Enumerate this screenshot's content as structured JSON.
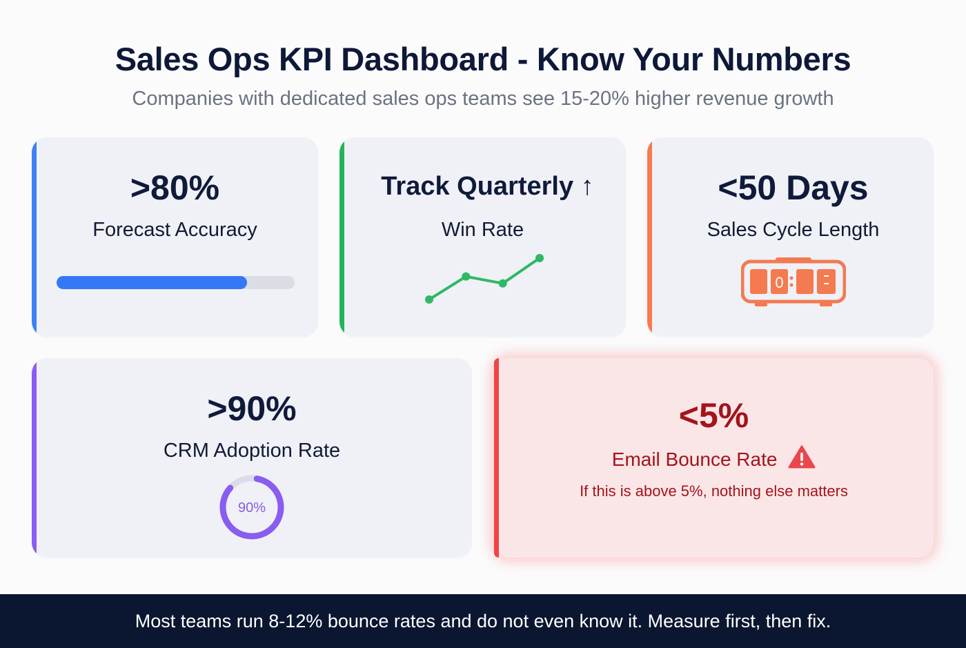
{
  "header": {
    "title": "Sales Ops KPI Dashboard - Know Your Numbers",
    "subtitle": "Companies with dedicated sales ops teams see 15-20% higher revenue growth"
  },
  "cards": [
    {
      "id": "forecast-accuracy",
      "value": ">80%",
      "label": "Forecast Accuracy",
      "accent_color": "#3b82f6",
      "visual": "progress-bar",
      "progress_percent": 80
    },
    {
      "id": "win-rate",
      "value": "Track Quarterly",
      "value_icon": "arrow-up-icon",
      "value_icon_glyph": "↑",
      "label": "Win Rate",
      "accent_color": "#22b45a",
      "visual": "sparkline",
      "sparkline_points": [
        1,
        3,
        2.4,
        4.6
      ]
    },
    {
      "id": "sales-cycle-length",
      "value": "<50 Days",
      "label": "Sales Cycle Length",
      "accent_color": "#f97a4c",
      "visual": "alarm-clock-icon",
      "clock_digit": "0"
    },
    {
      "id": "crm-adoption-rate",
      "value": ">90%",
      "label": "CRM Adoption Rate",
      "accent_color": "#8b5cf6",
      "visual": "donut",
      "donut_percent": 90,
      "donut_label": "90%"
    },
    {
      "id": "email-bounce-rate",
      "value": "<5%",
      "label": "Email Bounce Rate",
      "label_icon": "warning-icon",
      "note": "If this is above 5%, nothing else matters",
      "accent_color": "#ef4444",
      "text_color": "#a3141b"
    }
  ],
  "footer": {
    "text": "Most teams run 8-12% bounce rates and do not even know it. Measure first, then fix."
  }
}
